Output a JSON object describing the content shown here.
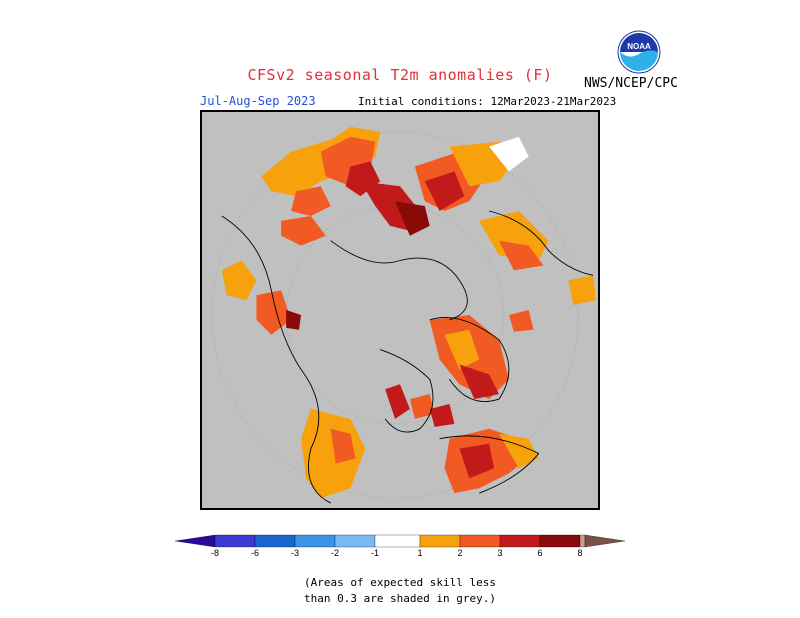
{
  "header": {
    "title": "CFSv2 seasonal T2m anomalies (F)",
    "period": "Jul-Aug-Sep 2023",
    "initial_conditions": "Initial conditions: 12Mar2023-21Mar2023",
    "org": "NWS/NCEP/CPC",
    "logo_text": "NOAA"
  },
  "legend": {
    "neg_labels": [
      "-8",
      "-6",
      "-3",
      "-2",
      "-1"
    ],
    "pos_labels": [
      "1",
      "2",
      "3",
      "6",
      "8"
    ],
    "colors": {
      "lt_m8": "#2a0a9a",
      "m8_m6": "#3b3bd4",
      "m6_m3": "#1a66d0",
      "m3_m2": "#3a94e8",
      "m2_m1": "#7ab8f4",
      "m1_1": "#ffffff",
      "p1_2": "#f7a20c",
      "p2_3": "#f15a22",
      "p3_6": "#c21a1a",
      "p6_8": "#8a0a0a",
      "p8_plus": "#c89f93",
      "gt_p8": "#7a5047"
    },
    "grey": "#c0c0c0"
  },
  "notes": {
    "line1": "(Areas of expected skill less",
    "line2": "than 0.3 are shaded in grey.)"
  }
}
